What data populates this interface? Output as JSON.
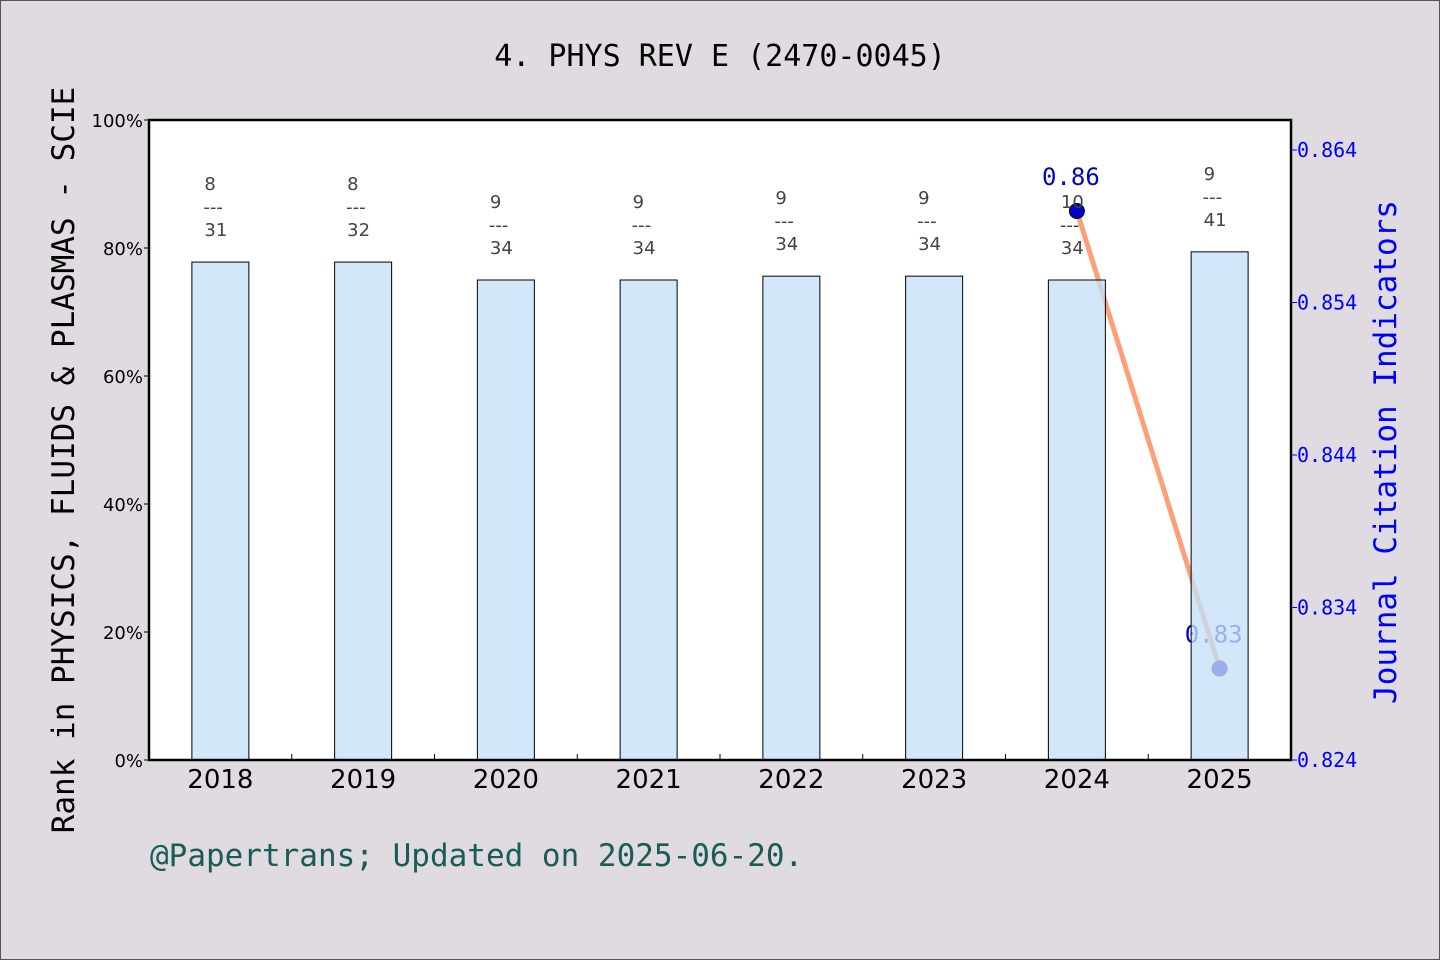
{
  "chart_data": {
    "type": "bar+line",
    "title": "4. PHYS REV E (2470-0045)",
    "ylabel": "Rank in PHYSICS, FLUIDS & PLASMAS - SCIE",
    "y2label": "Journal Citation Indicators",
    "footer": "@Papertrans; Updated on 2025-06-20.",
    "categories": [
      "2018",
      "2019",
      "2020",
      "2021",
      "2022",
      "2023",
      "2024",
      "2025"
    ],
    "ylim": [
      0,
      100
    ],
    "yticks": [
      "0%",
      "20%",
      "40%",
      "60%",
      "80%",
      "100%"
    ],
    "y2lim": [
      0.824,
      0.864
    ],
    "y2ticks": [
      "0.824",
      "0.834",
      "0.844",
      "0.854",
      "0.864"
    ],
    "bars": {
      "values_percent": [
        77.8,
        77.8,
        75.0,
        75.0,
        75.6,
        75.6,
        75.0,
        79.4
      ],
      "rank": [
        "8",
        "8",
        "9",
        "9",
        "9",
        "9",
        "10",
        "9"
      ],
      "total": [
        "31",
        "32",
        "34",
        "34",
        "34",
        "34",
        "34",
        "41"
      ],
      "color": "#c5e0f7"
    },
    "line": {
      "categories": [
        "2024",
        "2025"
      ],
      "values": [
        0.86,
        0.83
      ],
      "labels": [
        "0.86",
        "0.83"
      ],
      "line_color": "#ff9f7a",
      "marker_color": "#0000cc"
    },
    "colors": {
      "right_axis": "#0000ff",
      "footer": "#1a5c55"
    }
  }
}
